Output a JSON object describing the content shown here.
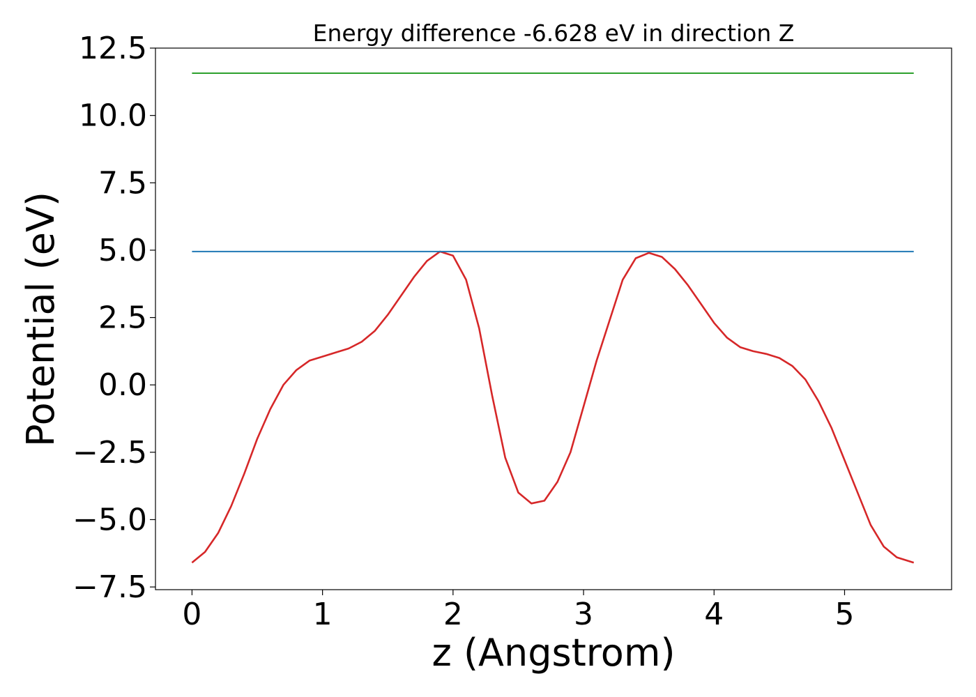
{
  "chart_data": {
    "type": "line",
    "title": "Energy difference -6.628 eV in direction Z",
    "xlabel": "z (Angstrom)",
    "ylabel": "Potential (eV)",
    "xlim": [
      -0.28,
      5.82
    ],
    "ylim": [
      -7.6,
      12.5
    ],
    "xticks": [
      0,
      1,
      2,
      3,
      4,
      5
    ],
    "xtick_labels": [
      "0",
      "1",
      "2",
      "3",
      "4",
      "5"
    ],
    "yticks": [
      -7.5,
      -5.0,
      -2.5,
      0.0,
      2.5,
      5.0,
      7.5,
      10.0,
      12.5
    ],
    "ytick_labels": [
      "−7.5",
      "−5.0",
      "−2.5",
      "0.0",
      "2.5",
      "5.0",
      "7.5",
      "10.0",
      "12.5"
    ],
    "grid": false,
    "series": [
      {
        "color": "#d62728",
        "x": [
          0.0,
          0.1,
          0.2,
          0.3,
          0.4,
          0.5,
          0.6,
          0.7,
          0.8,
          0.9,
          1.0,
          1.1,
          1.2,
          1.3,
          1.4,
          1.5,
          1.6,
          1.7,
          1.8,
          1.9,
          2.0,
          2.1,
          2.2,
          2.3,
          2.4,
          2.5,
          2.6,
          2.7,
          2.8,
          2.9,
          3.0,
          3.1,
          3.2,
          3.3,
          3.4,
          3.5,
          3.6,
          3.7,
          3.8,
          3.9,
          4.0,
          4.1,
          4.2,
          4.3,
          4.4,
          4.5,
          4.6,
          4.7,
          4.8,
          4.9,
          5.0,
          5.1,
          5.2,
          5.3,
          5.4,
          5.53
        ],
        "y": [
          -6.6,
          -6.2,
          -5.5,
          -4.5,
          -3.3,
          -2.0,
          -0.9,
          0.0,
          0.55,
          0.9,
          1.05,
          1.2,
          1.35,
          1.6,
          2.0,
          2.6,
          3.3,
          4.0,
          4.6,
          4.95,
          4.8,
          3.9,
          2.1,
          -0.4,
          -2.7,
          -4.0,
          -4.4,
          -4.3,
          -3.6,
          -2.5,
          -0.8,
          0.9,
          2.4,
          3.9,
          4.7,
          4.9,
          4.75,
          4.3,
          3.7,
          3.0,
          2.3,
          1.75,
          1.4,
          1.25,
          1.15,
          1.0,
          0.7,
          0.2,
          -0.6,
          -1.6,
          -2.8,
          -4.0,
          -5.2,
          -6.0,
          -6.4,
          -6.6
        ]
      },
      {
        "color": "#1f77b4",
        "x": [
          0.0,
          5.53
        ],
        "y": [
          4.95,
          4.95
        ]
      },
      {
        "color": "#2ca02c",
        "x": [
          0.0,
          5.53
        ],
        "y": [
          11.57,
          11.57
        ]
      }
    ]
  }
}
